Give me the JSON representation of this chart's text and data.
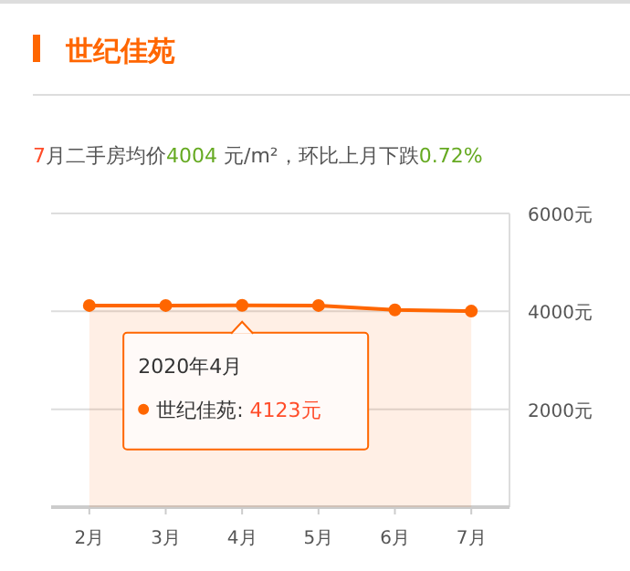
{
  "chart_data": {
    "type": "area",
    "title": "世纪佳苑",
    "subtitle": "7月二手房均价4004 元/m²，环比上月下跌0.72%",
    "categories": [
      "2月",
      "3月",
      "4月",
      "5月",
      "6月",
      "7月"
    ],
    "series": [
      {
        "color": "#ff6600",
        "values": [
          4120,
          4120,
          4123,
          4120,
          4030,
          4004
        ]
      }
    ],
    "ylim": [
      0,
      6000
    ],
    "yticks": [
      {
        "value": 2000,
        "label": "2000元"
      },
      {
        "value": 4000,
        "label": "4000元"
      },
      {
        "value": 6000,
        "label": "6000元"
      }
    ],
    "annotations": [
      {
        "text": "2020年4月",
        "x": "4月",
        "y": 4123
      },
      "世纪佳苑:   4123元"
    ],
    "grid": "y",
    "marker": "circle"
  }
}
